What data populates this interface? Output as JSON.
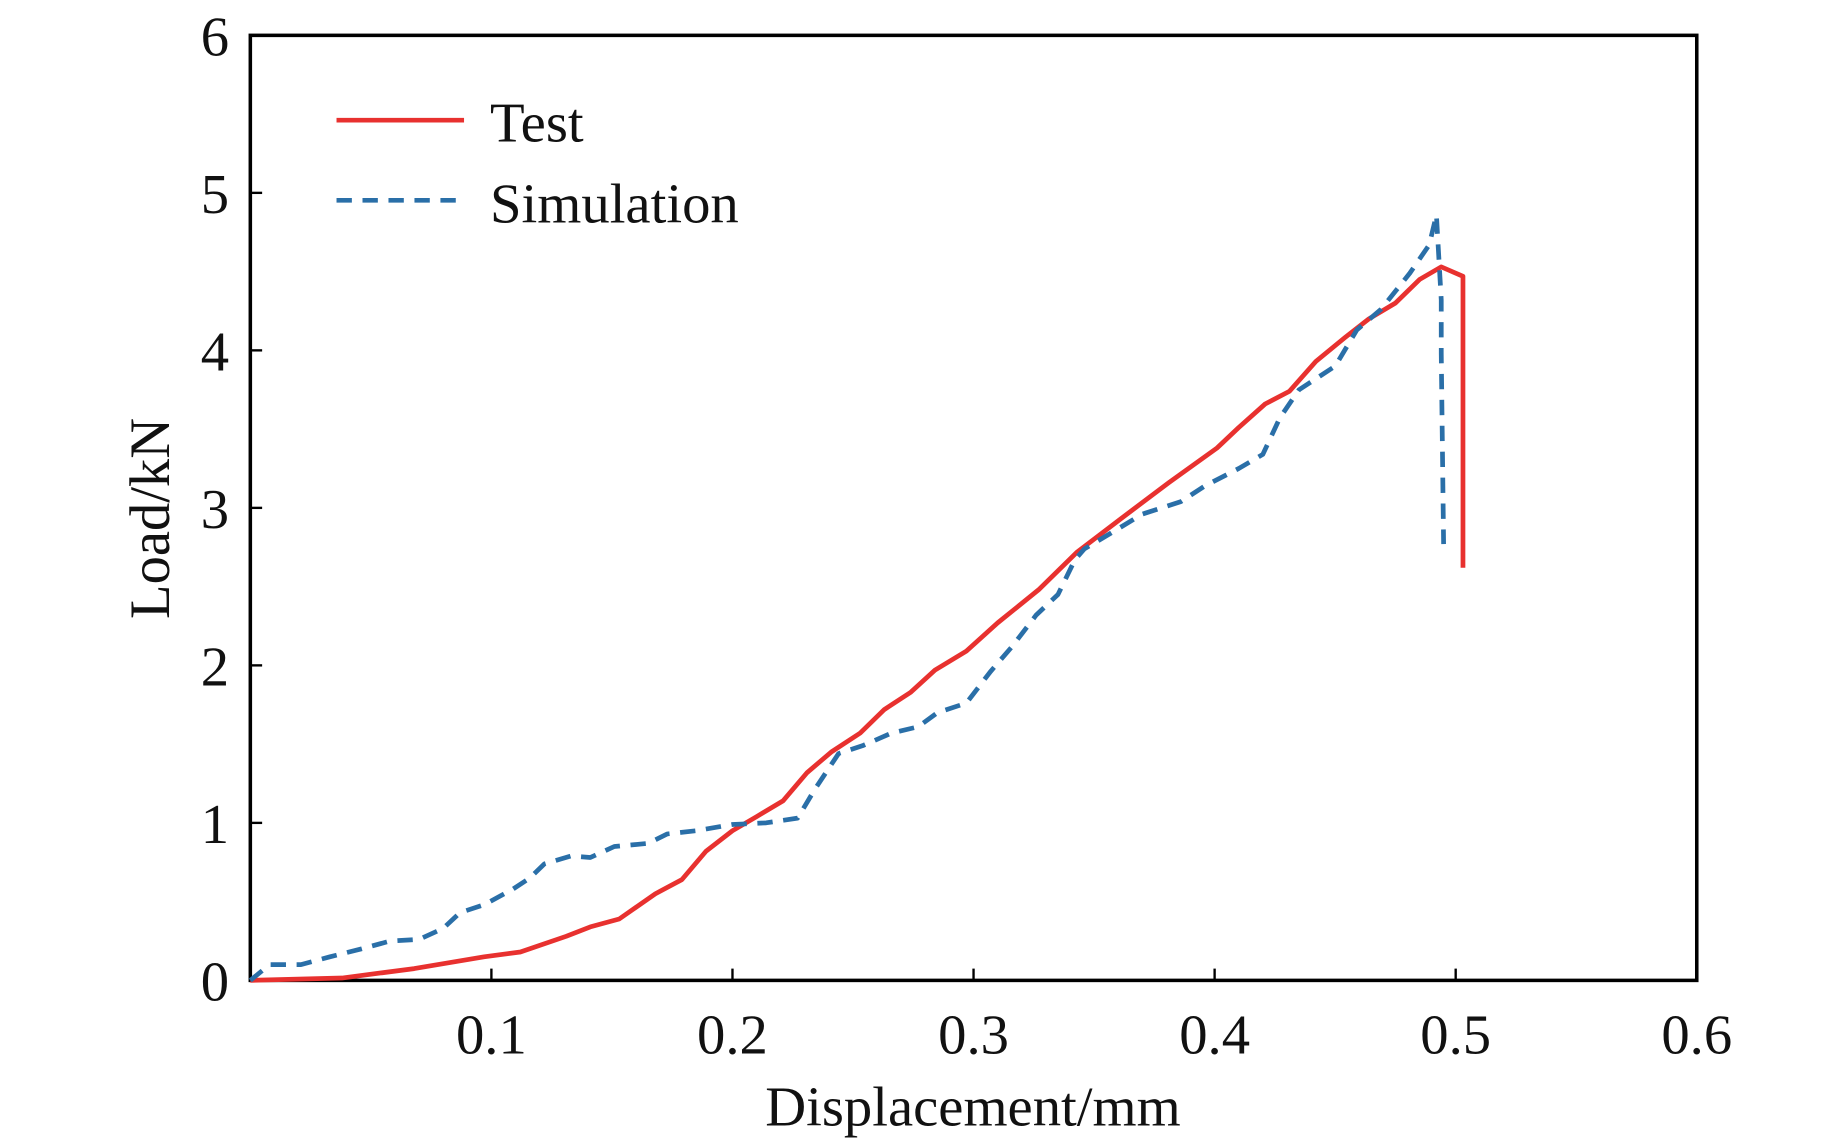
{
  "chart_data": {
    "type": "line",
    "title": "",
    "xlabel": "Displacement/mm",
    "ylabel": "Load/kN",
    "xlim": [
      0,
      0.6
    ],
    "ylim": [
      0,
      6
    ],
    "xticks": [
      0.1,
      0.2,
      0.3,
      0.4,
      0.5,
      0.6
    ],
    "xtick_labels": [
      "0.1",
      "0.2",
      "0.3",
      "0.4",
      "0.5",
      "0.6"
    ],
    "yticks": [
      0,
      1,
      2,
      3,
      4,
      5,
      6
    ],
    "ytick_labels": [
      "0",
      "1",
      "2",
      "3",
      "4",
      "5",
      "6"
    ],
    "grid": false,
    "legend_position": "top-left",
    "series": [
      {
        "name": "Test",
        "color": "#e8312f",
        "style": "solid",
        "x": [
          0,
          0.038,
          0.068,
          0.097,
          0.112,
          0.131,
          0.141,
          0.153,
          0.168,
          0.179,
          0.189,
          0.2,
          0.21,
          0.221,
          0.231,
          0.241,
          0.253,
          0.263,
          0.274,
          0.284,
          0.297,
          0.31,
          0.327,
          0.343,
          0.361,
          0.381,
          0.401,
          0.41,
          0.421,
          0.431,
          0.442,
          0.454,
          0.464,
          0.475,
          0.485,
          0.494,
          0.503,
          0.503
        ],
        "y": [
          0,
          0.015,
          0.075,
          0.15,
          0.18,
          0.28,
          0.34,
          0.39,
          0.55,
          0.64,
          0.82,
          0.95,
          1.04,
          1.14,
          1.32,
          1.45,
          1.57,
          1.72,
          1.83,
          1.97,
          2.09,
          2.27,
          2.48,
          2.72,
          2.93,
          3.16,
          3.38,
          3.51,
          3.66,
          3.74,
          3.93,
          4.08,
          4.2,
          4.3,
          4.45,
          4.53,
          4.47,
          2.62
        ]
      },
      {
        "name": "Simulation",
        "color": "#2a6fa8",
        "style": "dashed",
        "x": [
          0,
          0.008,
          0.021,
          0.033,
          0.046,
          0.058,
          0.07,
          0.08,
          0.087,
          0.097,
          0.109,
          0.116,
          0.122,
          0.133,
          0.141,
          0.151,
          0.165,
          0.173,
          0.185,
          0.2,
          0.214,
          0.227,
          0.234,
          0.244,
          0.254,
          0.266,
          0.277,
          0.285,
          0.297,
          0.307,
          0.316,
          0.326,
          0.335,
          0.342,
          0.346,
          0.357,
          0.37,
          0.386,
          0.396,
          0.41,
          0.42,
          0.427,
          0.435,
          0.45,
          0.459,
          0.469,
          0.481,
          0.489,
          0.492,
          0.494,
          0.494,
          0.495
        ],
        "y": [
          0,
          0.1,
          0.1,
          0.15,
          0.2,
          0.25,
          0.26,
          0.33,
          0.43,
          0.48,
          0.58,
          0.65,
          0.74,
          0.79,
          0.78,
          0.85,
          0.87,
          0.93,
          0.95,
          0.99,
          1.0,
          1.03,
          1.21,
          1.44,
          1.49,
          1.57,
          1.61,
          1.7,
          1.76,
          1.96,
          2.12,
          2.32,
          2.45,
          2.67,
          2.74,
          2.84,
          2.96,
          3.04,
          3.14,
          3.25,
          3.34,
          3.57,
          3.75,
          3.9,
          4.13,
          4.26,
          4.49,
          4.67,
          4.86,
          4.32,
          3.98,
          2.77
        ]
      }
    ]
  }
}
